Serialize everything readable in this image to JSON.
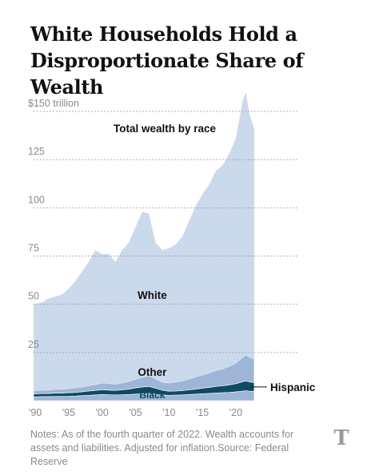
{
  "title": "White Households Hold a Disproportionate Share of Wealth",
  "notes": "Notes: As of the fourth quarter of 2022. Wealth accounts for assets and liabilities. Adjusted for inflation.Source: Federal Reserve",
  "logo_icon": "nyt-logo-icon",
  "chart_data": {
    "type": "area",
    "stacked": true,
    "annotation": "Total wealth by race",
    "y_tick_labels": [
      "$150 trillion",
      "125",
      "100",
      "75",
      "50",
      "25"
    ],
    "y_ticks": [
      150,
      125,
      100,
      75,
      50,
      25
    ],
    "x_tick_labels": [
      "'90",
      "'95",
      "'00",
      "'05",
      "'10",
      "'15",
      "'20"
    ],
    "x_ticks": [
      1990,
      1995,
      2000,
      2005,
      2010,
      2015,
      2020
    ],
    "ylim": [
      0,
      155
    ],
    "xlim": [
      1989.75,
      2023
    ],
    "grid": true,
    "x": [
      1989.75,
      1991,
      1992,
      1993,
      1994,
      1995,
      1996,
      1997,
      1998,
      1999,
      2000,
      2001,
      2002,
      2003,
      2004,
      2005,
      2006,
      2007,
      2008,
      2009,
      2010,
      2011,
      2012,
      2013,
      2014,
      2015,
      2016,
      2017,
      2018,
      2019,
      2020,
      2021,
      2021.5,
      2022,
      2022.75
    ],
    "series": [
      {
        "name": "Black",
        "color": "#9db5d6",
        "values": [
          2.0,
          2.1,
          2.1,
          2.2,
          2.2,
          2.3,
          2.4,
          2.6,
          2.8,
          3.0,
          3.2,
          3.1,
          3.0,
          3.1,
          3.2,
          3.4,
          3.6,
          3.8,
          3.5,
          3.0,
          2.8,
          2.9,
          3.0,
          3.2,
          3.4,
          3.6,
          3.8,
          4.0,
          4.1,
          4.3,
          4.6,
          5.0,
          5.2,
          5.0,
          4.8
        ]
      },
      {
        "name": "Hispanic",
        "color": "#0f4a63",
        "values": [
          1.5,
          1.6,
          1.6,
          1.7,
          1.7,
          1.8,
          1.9,
          2.0,
          2.2,
          2.3,
          2.5,
          2.4,
          2.3,
          2.5,
          2.8,
          3.2,
          3.5,
          3.6,
          3.0,
          2.4,
          2.1,
          2.1,
          2.2,
          2.4,
          2.6,
          2.9,
          3.1,
          3.4,
          3.6,
          3.9,
          4.2,
          4.8,
          5.0,
          4.8,
          4.6
        ]
      },
      {
        "name": "Other",
        "color": "#9db5d6",
        "values": [
          1.6,
          1.7,
          1.8,
          1.9,
          2.0,
          2.1,
          2.3,
          2.5,
          2.8,
          3.1,
          3.4,
          3.4,
          3.3,
          3.6,
          4.0,
          4.5,
          5.0,
          5.4,
          4.8,
          4.2,
          4.2,
          4.6,
          5.0,
          5.6,
          6.2,
          6.8,
          7.4,
          8.2,
          8.8,
          9.6,
          10.6,
          12.5,
          13.5,
          12.8,
          12.2
        ]
      },
      {
        "name": "White",
        "color": "#cbd9ec",
        "values": [
          44.9,
          45.6,
          47.5,
          48.2,
          49.1,
          51.8,
          55.4,
          59.9,
          64.2,
          69.6,
          66.9,
          67.1,
          63.4,
          68.8,
          72.0,
          78.9,
          85.9,
          84.2,
          70.7,
          68.4,
          69.9,
          71.4,
          74.8,
          81.8,
          88.8,
          93.7,
          97.7,
          103.4,
          105.5,
          110.2,
          116.6,
          132.7,
          136.3,
          126.4,
          119.4
        ]
      }
    ],
    "series_labels": [
      {
        "series": "White",
        "text": "White"
      },
      {
        "series": "Other",
        "text": "Other"
      },
      {
        "series": "Black",
        "text": "Black"
      },
      {
        "series": "Hispanic",
        "text": "Hispanic"
      }
    ]
  }
}
